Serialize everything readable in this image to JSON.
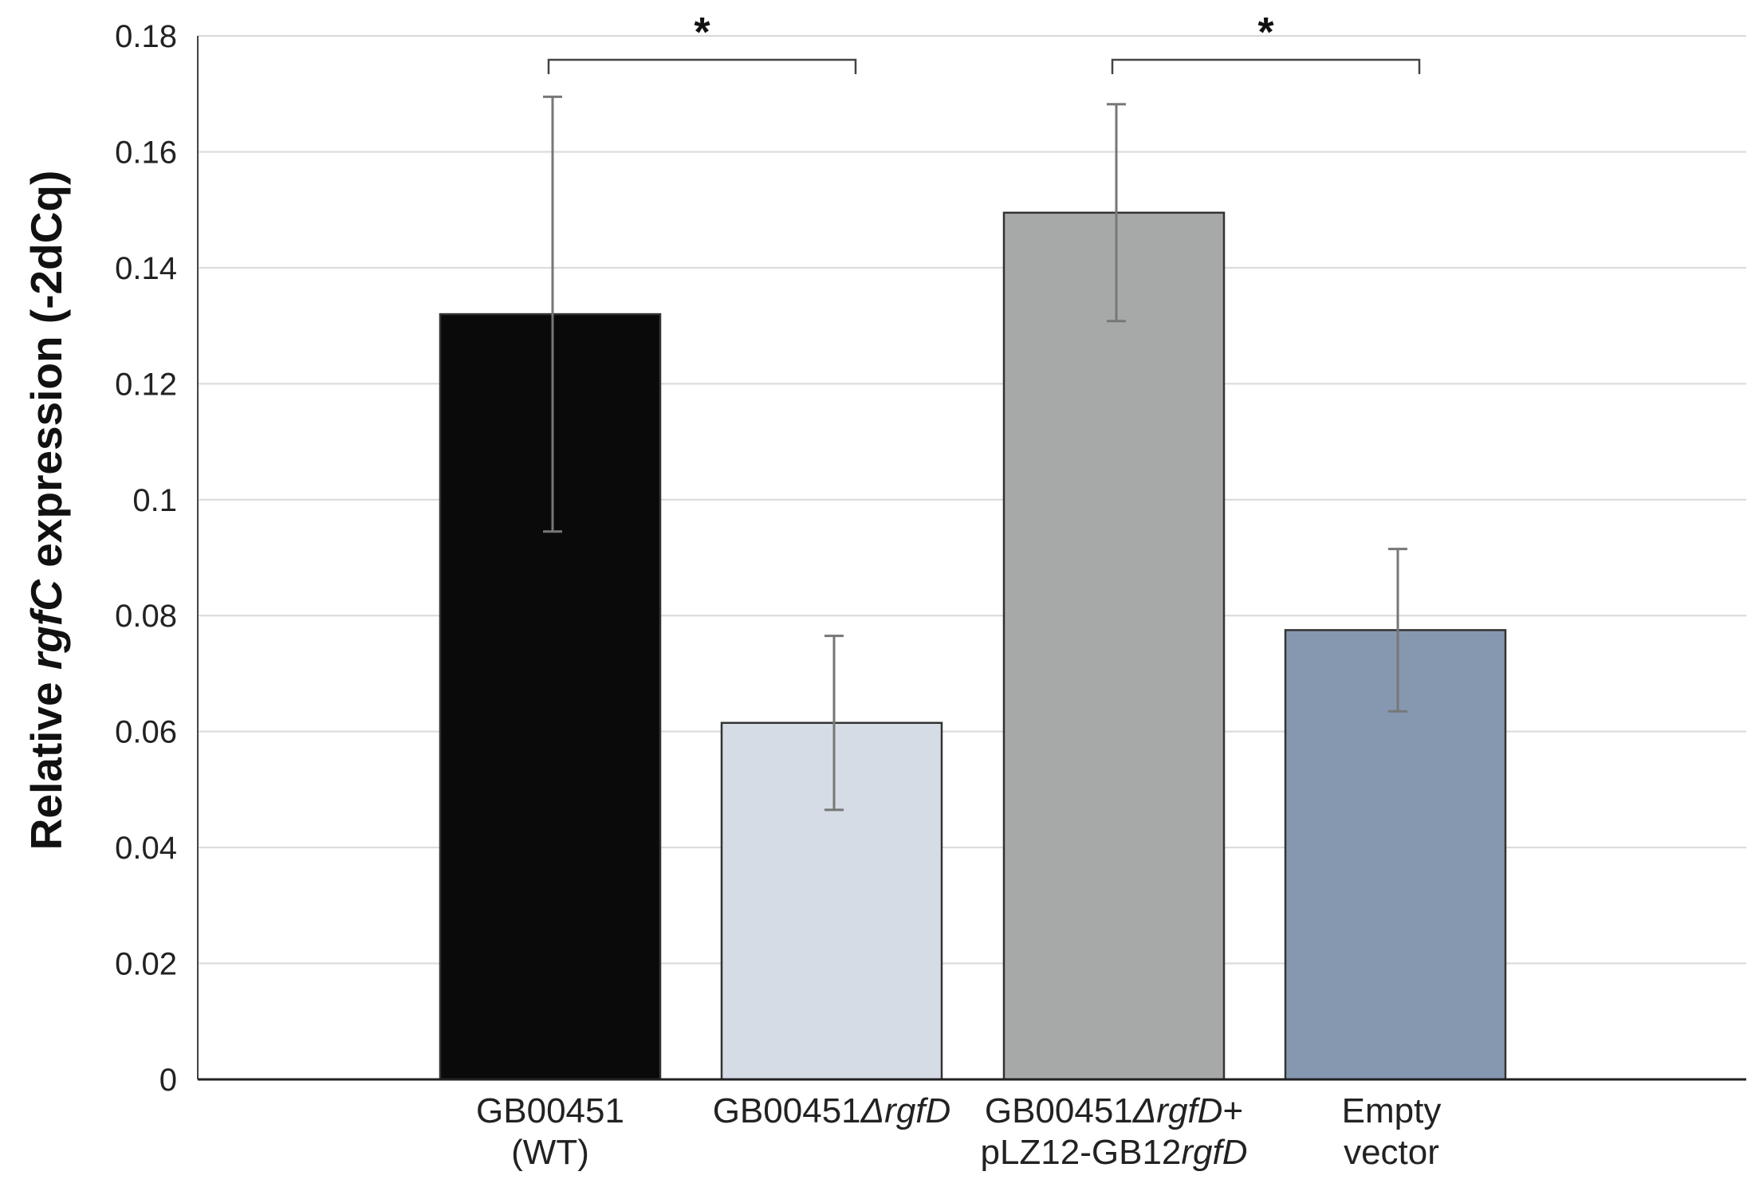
{
  "chart_data": {
    "type": "bar",
    "title": "",
    "ylabel": {
      "prefix": "Relative ",
      "italic": "rgfC",
      "suffix": " expression (-2dCq)"
    },
    "ylim": [
      0,
      0.18
    ],
    "yticks": [
      "0",
      "0.02",
      "0.04",
      "0.06",
      "0.08",
      "0.1",
      "0.12",
      "0.14",
      "0.16",
      "0.18"
    ],
    "grid": true,
    "categories": [
      {
        "line1": [
          "GB00451",
          ""
        ],
        "line2": [
          "(WT)",
          ""
        ]
      },
      {
        "line1": [
          "GB00451",
          "ΔrgfD"
        ],
        "line2": [
          "",
          ""
        ]
      },
      {
        "line1": [
          "GB00451",
          "ΔrgfD+"
        ],
        "line2": [
          "pLZ12-GB12",
          "rgfD"
        ]
      },
      {
        "line1": [
          "Empty",
          ""
        ],
        "line2": [
          "vector",
          ""
        ]
      }
    ],
    "values": [
      0.132,
      0.0615,
      0.1495,
      0.0775
    ],
    "error": [
      0.0375,
      0.015,
      0.0187,
      0.014
    ],
    "colors": [
      "#0a0a0a",
      "#d5dce6",
      "#a7a8a8",
      "#8698b0"
    ],
    "significance": [
      {
        "from": 0,
        "to": 1,
        "label": "*"
      },
      {
        "from": 2,
        "to": 3,
        "label": "*"
      }
    ]
  }
}
